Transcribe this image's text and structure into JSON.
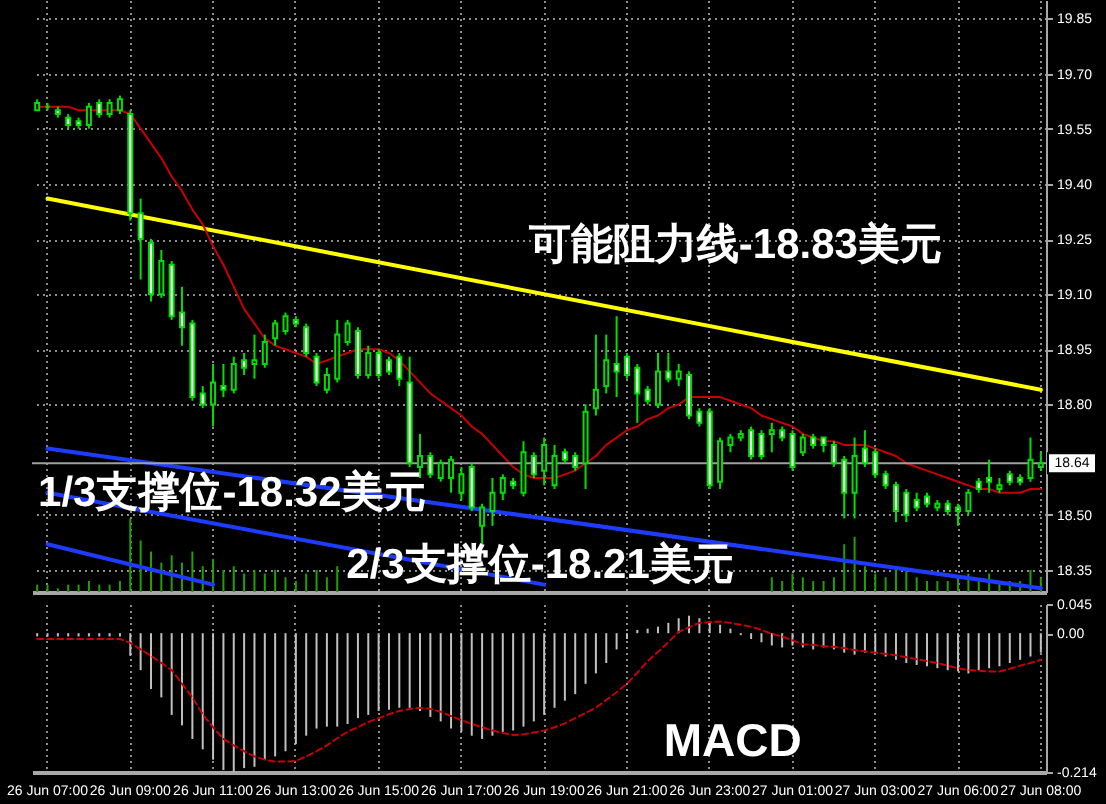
{
  "chart_data": [
    {
      "type": "candlestick",
      "categories": [
        null,
        "26 Jun 07:00",
        null,
        null,
        null,
        null,
        null,
        null,
        null,
        "26 Jun 09:00",
        null,
        null,
        null,
        null,
        null,
        null,
        null,
        "26 Jun 11:00",
        null,
        null,
        null,
        null,
        null,
        null,
        null,
        "26 Jun 13:00",
        null,
        null,
        null,
        null,
        null,
        null,
        null,
        "26 Jun 15:00",
        null,
        null,
        null,
        null,
        null,
        null,
        null,
        "26 Jun 17:00",
        null,
        null,
        null,
        null,
        null,
        null,
        null,
        "26 Jun 19:00",
        null,
        null,
        null,
        null,
        null,
        null,
        null,
        "26 Jun 21:00",
        null,
        null,
        null,
        null,
        null,
        null,
        null,
        "26 Jun 23:00",
        null,
        null,
        null,
        null,
        null,
        null,
        null,
        "27 Jun 01:00",
        null,
        null,
        null,
        null,
        null,
        null,
        null,
        "27 Jun 03:00",
        null,
        null,
        null,
        null,
        null,
        null,
        null,
        "27 Jun 06:00",
        null,
        null,
        null,
        null,
        null,
        null,
        null,
        "27 Jun 08:00"
      ],
      "ohlc": [
        [
          19.6,
          19.63,
          19.6,
          19.62
        ],
        [
          19.61,
          19.62,
          19.6,
          19.61
        ],
        [
          19.6,
          19.61,
          19.58,
          19.59
        ],
        [
          19.58,
          19.59,
          19.55,
          19.56
        ],
        [
          19.57,
          19.58,
          19.55,
          19.56
        ],
        [
          19.56,
          19.62,
          19.55,
          19.61
        ],
        [
          19.62,
          19.63,
          19.58,
          19.59
        ],
        [
          19.59,
          19.63,
          19.58,
          19.62
        ],
        [
          19.6,
          19.64,
          19.59,
          19.63
        ],
        [
          19.59,
          19.6,
          19.3,
          19.32
        ],
        [
          19.32,
          19.36,
          19.14,
          19.25
        ],
        [
          19.24,
          19.25,
          19.08,
          19.1
        ],
        [
          19.1,
          19.22,
          19.09,
          19.19
        ],
        [
          19.18,
          19.19,
          19.03,
          19.04
        ],
        [
          19.05,
          19.12,
          18.96,
          19.01
        ],
        [
          19.02,
          19.03,
          18.81,
          18.82
        ],
        [
          18.83,
          18.85,
          18.79,
          18.8
        ],
        [
          18.8,
          18.91,
          18.74,
          18.86
        ],
        [
          18.85,
          18.91,
          18.82,
          18.84
        ],
        [
          18.84,
          18.93,
          18.83,
          18.91
        ],
        [
          18.92,
          18.94,
          18.88,
          18.9
        ],
        [
          18.91,
          18.99,
          18.87,
          18.92
        ],
        [
          18.91,
          18.99,
          18.9,
          18.97
        ],
        [
          18.98,
          19.03,
          18.96,
          19.02
        ],
        [
          19.0,
          19.05,
          18.99,
          19.04
        ],
        [
          19.03,
          19.04,
          19.01,
          19.02
        ],
        [
          19.01,
          19.02,
          18.93,
          18.94
        ],
        [
          18.93,
          18.94,
          18.85,
          18.86
        ],
        [
          18.84,
          18.9,
          18.83,
          18.88
        ],
        [
          18.87,
          19.03,
          18.86,
          18.99
        ],
        [
          18.97,
          19.03,
          18.96,
          19.02
        ],
        [
          19.0,
          19.01,
          18.87,
          18.88
        ],
        [
          18.88,
          18.96,
          18.87,
          18.94
        ],
        [
          18.94,
          18.95,
          18.87,
          18.88
        ],
        [
          18.92,
          18.93,
          18.88,
          18.89
        ],
        [
          18.93,
          18.94,
          18.85,
          18.87
        ],
        [
          18.86,
          18.93,
          18.63,
          18.64
        ],
        [
          18.63,
          18.72,
          18.6,
          18.66
        ],
        [
          18.66,
          18.67,
          18.6,
          18.61
        ],
        [
          18.6,
          18.65,
          18.59,
          18.64
        ],
        [
          18.6,
          18.66,
          18.56,
          18.65
        ],
        [
          18.56,
          18.63,
          18.54,
          18.61
        ],
        [
          18.63,
          18.64,
          18.51,
          18.52
        ],
        [
          18.47,
          18.53,
          18.42,
          18.52
        ],
        [
          18.51,
          18.6,
          18.47,
          18.56
        ],
        [
          18.56,
          18.61,
          18.54,
          18.6
        ],
        [
          18.59,
          18.6,
          18.57,
          18.58
        ],
        [
          18.56,
          18.7,
          18.55,
          18.67
        ],
        [
          18.66,
          18.67,
          18.6,
          18.61
        ],
        [
          18.62,
          18.71,
          18.58,
          18.69
        ],
        [
          18.58,
          18.69,
          18.57,
          18.66
        ],
        [
          18.67,
          18.68,
          18.64,
          18.65
        ],
        [
          18.66,
          18.67,
          18.62,
          18.63
        ],
        [
          18.64,
          18.8,
          18.57,
          18.78
        ],
        [
          18.79,
          18.99,
          18.77,
          18.84
        ],
        [
          18.85,
          18.99,
          18.83,
          18.92
        ],
        [
          18.91,
          19.04,
          18.82,
          18.89
        ],
        [
          18.93,
          18.94,
          18.87,
          18.88
        ],
        [
          18.9,
          18.91,
          18.75,
          18.83
        ],
        [
          18.84,
          18.85,
          18.8,
          18.81
        ],
        [
          18.8,
          18.94,
          18.79,
          18.89
        ],
        [
          18.89,
          18.94,
          18.86,
          18.87
        ],
        [
          18.87,
          18.91,
          18.85,
          18.89
        ],
        [
          18.88,
          18.89,
          18.76,
          18.77
        ],
        [
          18.78,
          18.79,
          18.74,
          18.75
        ],
        [
          18.78,
          18.79,
          18.57,
          18.58
        ],
        [
          18.59,
          18.71,
          18.57,
          18.7
        ],
        [
          18.69,
          18.72,
          18.67,
          18.71
        ],
        [
          18.71,
          18.73,
          18.7,
          18.72
        ],
        [
          18.73,
          18.74,
          18.65,
          18.66
        ],
        [
          18.72,
          18.73,
          18.65,
          18.66
        ],
        [
          18.72,
          18.75,
          18.67,
          18.73
        ],
        [
          18.73,
          18.74,
          18.7,
          18.71
        ],
        [
          18.72,
          18.73,
          18.62,
          18.63
        ],
        [
          18.67,
          18.72,
          18.66,
          18.71
        ],
        [
          18.71,
          18.72,
          18.68,
          18.69
        ],
        [
          18.71,
          18.71,
          18.67,
          18.69
        ],
        [
          18.69,
          18.7,
          18.63,
          18.64
        ],
        [
          18.65,
          18.66,
          18.49,
          18.56
        ],
        [
          18.56,
          18.71,
          18.49,
          18.66
        ],
        [
          18.68,
          18.73,
          18.63,
          18.64
        ],
        [
          18.67,
          18.68,
          18.6,
          18.61
        ],
        [
          18.61,
          18.62,
          18.57,
          18.58
        ],
        [
          18.58,
          18.59,
          18.48,
          18.51
        ],
        [
          18.56,
          18.57,
          18.48,
          18.5
        ],
        [
          18.54,
          18.56,
          18.51,
          18.52
        ],
        [
          18.55,
          18.56,
          18.52,
          18.53
        ],
        [
          18.52,
          18.54,
          18.51,
          18.53
        ],
        [
          18.53,
          18.54,
          18.5,
          18.51
        ],
        [
          18.52,
          18.53,
          18.47,
          18.51
        ],
        [
          18.51,
          18.57,
          18.5,
          18.56
        ],
        [
          18.59,
          18.6,
          18.56,
          18.57
        ],
        [
          18.6,
          18.65,
          18.56,
          18.59
        ],
        [
          18.57,
          18.6,
          18.56,
          18.58
        ],
        [
          18.61,
          18.62,
          18.58,
          18.59
        ],
        [
          18.6,
          18.61,
          18.58,
          18.59
        ],
        [
          18.6,
          18.71,
          18.59,
          18.65
        ],
        [
          18.63,
          18.67,
          18.62,
          18.64
        ]
      ],
      "color": "#00e000",
      "ylim": [
        18.29,
        19.9
      ],
      "yticks": [
        18.35,
        {
          "value": 18.5,
          "label": "18.50"
        },
        {
          "value": 18.8,
          "label": "18.80"
        },
        18.95,
        {
          "value": 19.1,
          "label": "19.10"
        },
        19.25,
        {
          "value": 19.4,
          "label": "19.40"
        },
        19.55,
        {
          "value": 19.7,
          "label": "19.70"
        },
        19.85
      ],
      "grid": true,
      "tick_labels": "y",
      "series": [
        {
          "type": "bar",
          "color": "#22a000",
          "values": [
            0.02,
            0.02,
            0.01,
            0.02,
            0.02,
            0.03,
            0.02,
            0.02,
            0.03,
            0.2,
            0.14,
            0.11,
            0.08,
            0.1,
            0.08,
            0.11,
            0.07,
            0.09,
            0.06,
            0.07,
            0.05,
            0.06,
            0.05,
            0.06,
            0.04,
            0.03,
            0.05,
            0.06,
            0.04,
            0.07,
            null,
            null,
            null,
            null,
            null,
            null,
            null,
            null,
            null,
            null,
            null,
            null,
            null,
            null,
            null,
            null,
            null,
            null,
            null,
            null,
            null,
            null,
            null,
            null,
            null,
            null,
            null,
            null,
            null,
            null,
            null,
            null,
            null,
            null,
            null,
            null,
            null,
            null,
            null,
            null,
            null,
            0.04,
            0.03,
            0.05,
            0.04,
            0.03,
            0.03,
            0.04,
            0.13,
            0.15,
            0.07,
            0.05,
            0.04,
            0.07,
            0.06,
            0.04,
            0.03,
            0.03,
            0.03,
            0.04,
            0.05,
            0.03,
            0.05,
            0.03,
            0.03,
            0.03,
            0.06,
            0.04
          ],
          "base": [
            18.29,
            18.29,
            18.29,
            18.29,
            18.29,
            18.29,
            18.29,
            18.29,
            18.29,
            18.29,
            18.29,
            18.29,
            18.29,
            18.29,
            18.29,
            18.29,
            18.29,
            18.29,
            18.29,
            18.29,
            18.29,
            18.29,
            18.29,
            18.29,
            18.29,
            18.29,
            18.29,
            18.29,
            18.29,
            18.29,
            null,
            null,
            null,
            null,
            null,
            null,
            null,
            null,
            null,
            null,
            null,
            null,
            null,
            null,
            null,
            null,
            null,
            null,
            null,
            null,
            null,
            null,
            null,
            null,
            null,
            null,
            null,
            null,
            null,
            null,
            null,
            null,
            null,
            null,
            null,
            null,
            null,
            null,
            null,
            null,
            null,
            18.29,
            18.29,
            18.29,
            18.29,
            18.29,
            18.29,
            18.29,
            18.29,
            18.29,
            18.29,
            18.29,
            18.29,
            18.29,
            18.29,
            18.29,
            18.29,
            18.29,
            18.29,
            18.29,
            18.29,
            18.29,
            18.29,
            18.29,
            18.29,
            18.29,
            18.29,
            18.29
          ]
        },
        {
          "type": "line",
          "color": "#1e3cff",
          "x": [
            "26 Jun 07:00",
            "27 Jun 08:00"
          ],
          "values": [
            18.68,
            18.3
          ]
        },
        {
          "type": "line",
          "color": "#1e3cff",
          "x": [
            "26 Jun 07:00",
            "26 Jun 19:00"
          ],
          "values": [
            18.56,
            18.31
          ]
        },
        {
          "type": "line",
          "color": "#1e3cff",
          "x": [
            "26 Jun 07:00",
            "26 Jun 11:00"
          ],
          "values": [
            18.42,
            18.31
          ]
        },
        {
          "type": "line",
          "color": "#ffff00",
          "x": [
            "26 Jun 07:00",
            "27 Jun 08:00"
          ],
          "values": [
            19.36,
            18.84
          ]
        },
        {
          "type": "line",
          "color": "#c80000",
          "values": [
            19.61,
            19.61,
            19.61,
            19.61,
            19.6,
            19.6,
            19.6,
            19.6,
            19.6,
            19.59,
            19.55,
            19.51,
            19.47,
            19.42,
            19.38,
            19.33,
            19.29,
            19.23,
            19.18,
            19.12,
            19.06,
            19.02,
            18.98,
            18.96,
            18.95,
            18.94,
            18.93,
            18.91,
            18.92,
            18.93,
            18.94,
            18.95,
            18.95,
            18.95,
            18.94,
            18.92,
            18.89,
            18.86,
            18.83,
            18.81,
            18.79,
            18.77,
            18.74,
            18.72,
            18.69,
            18.66,
            18.63,
            18.61,
            18.6,
            18.6,
            18.6,
            18.61,
            18.62,
            18.64,
            18.66,
            18.69,
            18.71,
            18.73,
            18.74,
            18.76,
            18.77,
            18.79,
            18.8,
            18.82,
            18.82,
            18.82,
            18.82,
            18.81,
            18.8,
            18.79,
            18.77,
            18.76,
            18.75,
            18.74,
            18.72,
            18.71,
            18.7,
            18.7,
            18.69,
            18.69,
            18.69,
            18.68,
            18.67,
            18.66,
            18.64,
            18.63,
            18.62,
            18.61,
            18.6,
            18.59,
            18.58,
            18.57,
            18.57,
            18.56,
            18.56,
            18.56,
            18.57,
            18.57
          ]
        }
      ],
      "ref_lines": [
        {
          "axis": "y",
          "value": 18.64,
          "label": "18.64",
          "color": "#a0a0a0"
        }
      ],
      "annotations": [
        "可能阻力线-18.83美元",
        "1/3支撑位-18.32美元",
        "2/3支撑位-18.21美元"
      ]
    },
    {
      "type": "bar",
      "categories": [
        null,
        "26 Jun 07:00",
        null,
        null,
        null,
        null,
        null,
        null,
        null,
        "26 Jun 09:00",
        null,
        null,
        null,
        null,
        null,
        null,
        null,
        "26 Jun 11:00",
        null,
        null,
        null,
        null,
        null,
        null,
        null,
        "26 Jun 13:00",
        null,
        null,
        null,
        null,
        null,
        null,
        null,
        "26 Jun 15:00",
        null,
        null,
        null,
        null,
        null,
        null,
        null,
        "26 Jun 17:00",
        null,
        null,
        null,
        null,
        null,
        null,
        null,
        "26 Jun 19:00",
        null,
        null,
        null,
        null,
        null,
        null,
        null,
        "26 Jun 21:00",
        null,
        null,
        null,
        null,
        null,
        null,
        null,
        "26 Jun 23:00",
        null,
        null,
        null,
        null,
        null,
        null,
        null,
        "27 Jun 01:00",
        null,
        null,
        null,
        null,
        null,
        null,
        null,
        "27 Jun 03:00",
        null,
        null,
        null,
        null,
        null,
        null,
        null,
        "27 Jun 06:00",
        null,
        null,
        null,
        null,
        null,
        null,
        null,
        "27 Jun 08:00"
      ],
      "ylim": [
        -0.214,
        0.045
      ],
      "yticks": [
        -0.214,
        {
          "value": 0,
          "label": "0.00"
        },
        0.045
      ],
      "grid": "x",
      "series": [
        {
          "type": "bar",
          "color": "#c0c0c0",
          "values": [
            -0.005,
            -0.005,
            -0.005,
            -0.005,
            -0.005,
            -0.005,
            -0.005,
            -0.005,
            -0.005,
            -0.035,
            -0.057,
            -0.086,
            -0.099,
            -0.126,
            -0.142,
            -0.163,
            -0.179,
            -0.195,
            -0.211,
            -0.214,
            -0.208,
            -0.206,
            -0.195,
            -0.19,
            -0.182,
            -0.171,
            -0.158,
            -0.147,
            -0.144,
            -0.144,
            -0.14,
            -0.131,
            -0.126,
            -0.12,
            -0.118,
            -0.115,
            -0.115,
            -0.12,
            -0.129,
            -0.136,
            -0.147,
            -0.152,
            -0.158,
            -0.163,
            -0.158,
            -0.152,
            -0.15,
            -0.144,
            -0.136,
            -0.126,
            -0.115,
            -0.104,
            -0.094,
            -0.078,
            -0.062,
            -0.046,
            -0.025,
            -0.009,
            0.005,
            0.007,
            0.01,
            0.016,
            0.023,
            0.027,
            0.023,
            0.018,
            0.013,
            0.007,
            -0.003,
            -0.009,
            -0.014,
            -0.019,
            -0.022,
            -0.019,
            -0.022,
            -0.025,
            -0.022,
            -0.025,
            -0.03,
            -0.033,
            -0.03,
            -0.032,
            -0.036,
            -0.041,
            -0.046,
            -0.049,
            -0.051,
            -0.054,
            -0.057,
            -0.059,
            -0.062,
            -0.057,
            -0.054,
            -0.051,
            -0.046,
            -0.041,
            -0.036,
            -0.03
          ]
        },
        {
          "type": "line",
          "color": "#c80000",
          "line_style": "dashed",
          "values": [
            -0.009,
            -0.009,
            -0.009,
            -0.009,
            -0.009,
            -0.009,
            -0.009,
            -0.009,
            -0.009,
            -0.015,
            -0.025,
            -0.035,
            -0.046,
            -0.057,
            -0.078,
            -0.099,
            -0.125,
            -0.145,
            -0.163,
            -0.173,
            -0.182,
            -0.19,
            -0.195,
            -0.198,
            -0.198,
            -0.197,
            -0.19,
            -0.182,
            -0.173,
            -0.162,
            -0.152,
            -0.145,
            -0.137,
            -0.131,
            -0.125,
            -0.12,
            -0.117,
            -0.115,
            -0.117,
            -0.121,
            -0.128,
            -0.134,
            -0.14,
            -0.145,
            -0.15,
            -0.154,
            -0.157,
            -0.156,
            -0.153,
            -0.15,
            -0.145,
            -0.139,
            -0.131,
            -0.123,
            -0.115,
            -0.103,
            -0.091,
            -0.078,
            -0.061,
            -0.043,
            -0.029,
            -0.014,
            0.002,
            0.009,
            0.016,
            0.017,
            0.018,
            0.016,
            0.013,
            0.01,
            0.005,
            -0.001,
            -0.005,
            -0.011,
            -0.017,
            -0.018,
            -0.02,
            -0.021,
            -0.023,
            -0.026,
            -0.028,
            -0.03,
            -0.032,
            -0.034,
            -0.037,
            -0.04,
            -0.043,
            -0.046,
            -0.05,
            -0.054,
            -0.057,
            -0.058,
            -0.059,
            -0.059,
            -0.055,
            -0.05,
            -0.046,
            -0.041
          ]
        }
      ],
      "annotations": [
        "MACD"
      ]
    }
  ]
}
